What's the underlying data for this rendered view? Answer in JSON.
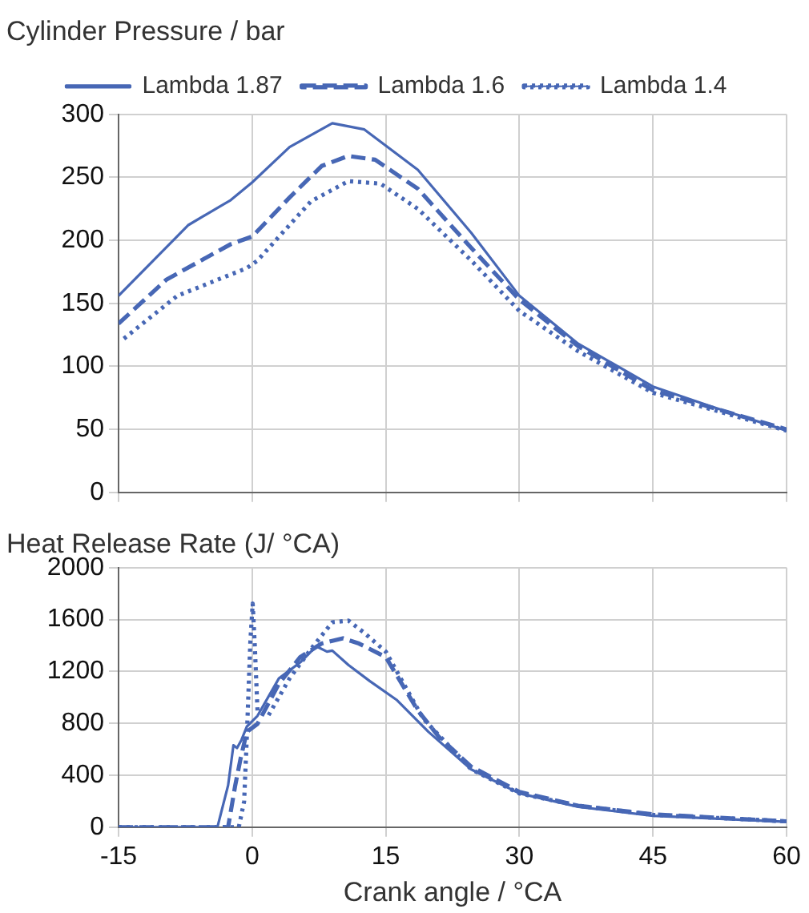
{
  "chart_data": [
    {
      "type": "line",
      "title": "Cylinder Pressure / bar",
      "legend": "top",
      "marker": "none",
      "grid": true,
      "tick_labels": "y",
      "xlim": [
        -15,
        60
      ],
      "xticks": [
        -15,
        0,
        15,
        30,
        45,
        60
      ],
      "ylim": [
        0,
        300
      ],
      "yticks": [
        0,
        50,
        100,
        150,
        200,
        250,
        300
      ],
      "series": [
        {
          "name": "Lambda 1.87",
          "color": "#4767b5",
          "line_style": "solid",
          "x": [
            -15,
            -7.2,
            -2.4,
            0,
            4.2,
            9,
            12.6,
            18.6,
            24.6,
            30,
            36.6,
            45,
            51.6,
            60
          ],
          "values": [
            156,
            212,
            232,
            246,
            274,
            293,
            288,
            256,
            206,
            156,
            118,
            84,
            68,
            49
          ]
        },
        {
          "name": "Lambda 1.6",
          "color": "#4767b5",
          "line_style": "dashed",
          "x": [
            -15,
            -9.6,
            -2.4,
            0,
            4.2,
            7.8,
            10.8,
            13.8,
            18.6,
            24.6,
            30,
            36.6,
            45,
            60
          ],
          "values": [
            134,
            169,
            197,
            203,
            234,
            259,
            267,
            264,
            241,
            194,
            153,
            116,
            81,
            50
          ]
        },
        {
          "name": "Lambda 1.4",
          "color": "#4767b5",
          "line_style": "dotted",
          "x": [
            -14.4,
            -8.4,
            -0.6,
            0.6,
            6.6,
            10.8,
            14.4,
            18.6,
            24.6,
            30,
            36.6,
            45,
            60
          ],
          "values": [
            122,
            156,
            178,
            184,
            231,
            247,
            245,
            225,
            184,
            144,
            112,
            79,
            49
          ]
        }
      ]
    },
    {
      "type": "line",
      "title": "Heat Release Rate (J/ °CA)",
      "xlabel": "Crank angle / °CA",
      "marker": "none",
      "grid": true,
      "xlim": [
        -15,
        60
      ],
      "xticks": [
        -15,
        0,
        15,
        30,
        45,
        60
      ],
      "ylim": [
        0,
        2000
      ],
      "yticks": [
        0,
        400,
        800,
        1200,
        1600,
        2000
      ],
      "series": [
        {
          "color": "#4767b5",
          "line_style": "solid",
          "x": [
            -15,
            -3.9,
            -2.7,
            -2.1,
            -1.7,
            -1.2,
            -0.6,
            0.6,
            3,
            5.4,
            7.2,
            8.4,
            9,
            10.8,
            13.2,
            16.2,
            19.8,
            24.6,
            30,
            36.6,
            45,
            60
          ],
          "values": [
            0,
            0,
            322,
            631,
            610,
            672,
            775,
            858,
            1146,
            1270,
            1394,
            1353,
            1361,
            1250,
            1126,
            982,
            734,
            445,
            260,
            157,
            87,
            41
          ]
        },
        {
          "color": "#4767b5",
          "line_style": "dashed",
          "x": [
            -15,
            -2.7,
            -1.9,
            -1.3,
            -0.6,
            0.6,
            3,
            5.4,
            7.8,
            10.2,
            12,
            15,
            18.6,
            21,
            24.6,
            30,
            36.6,
            45,
            60
          ],
          "values": [
            0,
            0,
            322,
            528,
            734,
            796,
            1105,
            1311,
            1415,
            1456,
            1415,
            1311,
            899,
            693,
            466,
            272,
            165,
            99,
            45
          ]
        },
        {
          "color": "#4767b5",
          "line_style": "dotted",
          "x": [
            -15,
            -1.5,
            -0.9,
            -0.6,
            -0.2,
            0.06,
            0.3,
            0.6,
            1.8,
            4.2,
            6.6,
            9,
            10.8,
            12.6,
            15,
            19.2,
            24.6,
            30,
            36.6,
            45,
            60
          ],
          "values": [
            0,
            0,
            198,
            693,
            1435,
            1724,
            1394,
            899,
            858,
            1146,
            1373,
            1579,
            1592,
            1497,
            1353,
            837,
            445,
            260,
            165,
            95,
            45
          ]
        }
      ]
    }
  ]
}
